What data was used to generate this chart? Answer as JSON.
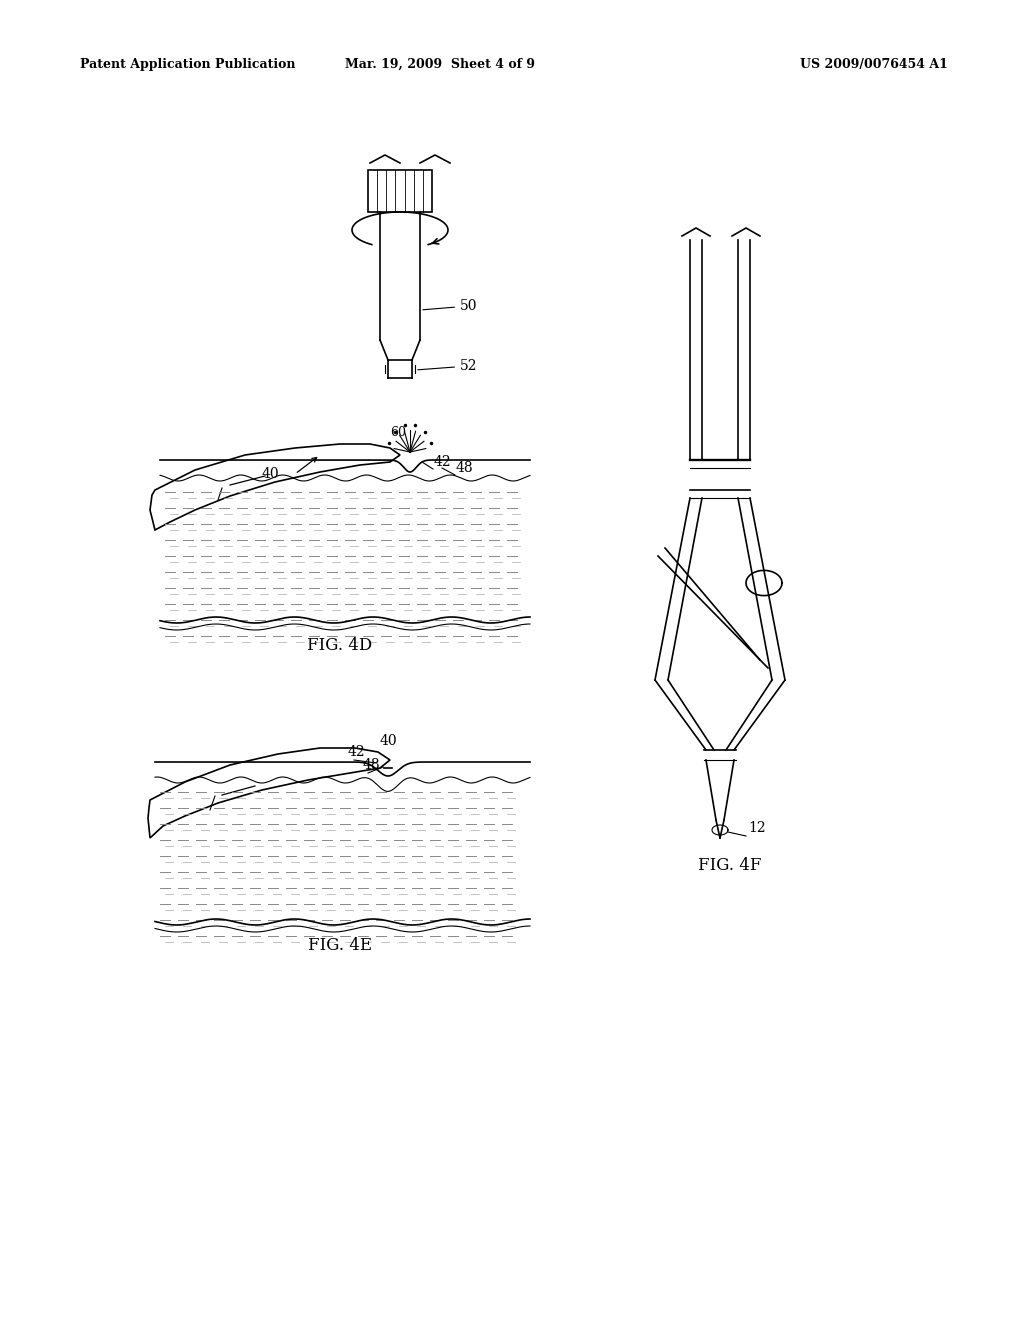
{
  "bg_color": "#ffffff",
  "header_text1": "Patent Application Publication",
  "header_text2": "Mar. 19, 2009  Sheet 4 of 9",
  "header_text3": "US 2009/0076454 A1",
  "fig4d_label": "FIG. 4D",
  "fig4e_label": "FIG. 4E",
  "fig4f_label": "FIG. 4F"
}
